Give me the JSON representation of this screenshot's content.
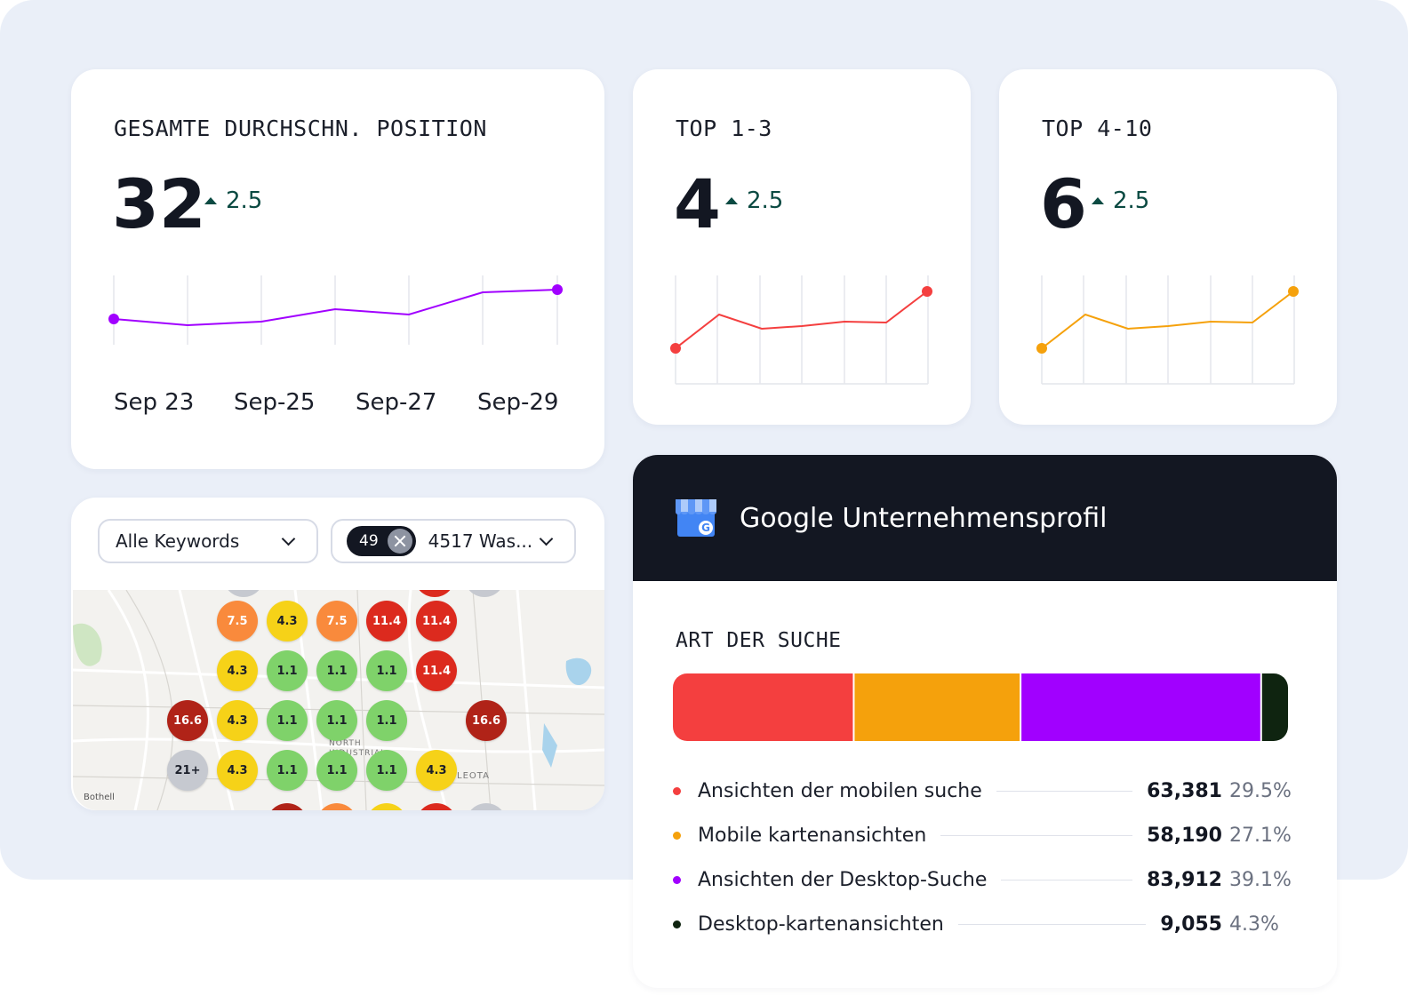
{
  "avg_position": {
    "title": "GESAMTE DURCHSCHN. POSITION",
    "value": "32",
    "delta": "2.5",
    "x_labels": [
      "Sep 23",
      "Sep-25",
      "Sep-27",
      "Sep-29"
    ],
    "series_color": "#a100ff"
  },
  "top_1_3": {
    "title": "TOP 1-3",
    "value": "4",
    "delta": "2.5",
    "series_color": "#f43f3f"
  },
  "top_4_10": {
    "title": "TOP 4-10",
    "value": "6",
    "delta": "2.5",
    "series_color": "#f5a10c"
  },
  "map_panel": {
    "keyword_select": "Alle Keywords",
    "location_count": "49",
    "location_select": "4517 Was...",
    "map_labels": [
      "Bothell",
      "LEOTA",
      "NORTH",
      "INDUSTRIAL"
    ],
    "grid": [
      {
        "v": "7.5",
        "c": "#f98a3c"
      },
      {
        "v": "4.3",
        "c": "#f6d218"
      },
      {
        "v": "7.5",
        "c": "#f98a3c"
      },
      {
        "v": "11.4",
        "c": "#dc2a1e"
      },
      {
        "v": "11.4",
        "c": "#dc2a1e"
      },
      {
        "v": "4.3",
        "c": "#f6d218"
      },
      {
        "v": "1.1",
        "c": "#7fd26a"
      },
      {
        "v": "1.1",
        "c": "#7fd26a"
      },
      {
        "v": "1.1",
        "c": "#7fd26a"
      },
      {
        "v": "11.4",
        "c": "#dc2a1e"
      },
      {
        "v": "16.6",
        "c": "#b02318"
      },
      {
        "v": "4.3",
        "c": "#f6d218"
      },
      {
        "v": "1.1",
        "c": "#7fd26a"
      },
      {
        "v": "1.1",
        "c": "#7fd26a"
      },
      {
        "v": "1.1",
        "c": "#7fd26a"
      },
      {
        "v": "16.6",
        "c": "#b02318"
      },
      {
        "v": "21+",
        "c": "#c6c9d0"
      },
      {
        "v": "4.3",
        "c": "#f6d218"
      },
      {
        "v": "1.1",
        "c": "#7fd26a"
      },
      {
        "v": "1.1",
        "c": "#7fd26a"
      },
      {
        "v": "1.1",
        "c": "#7fd26a"
      },
      {
        "v": "4.3",
        "c": "#f6d218"
      }
    ]
  },
  "gbp": {
    "header_title": "Google Unternehmensprofil",
    "section_title": "ART DER SUCHE",
    "chart_data": {
      "type": "bar",
      "orientation": "stacked-horizontal",
      "categories": [
        "Ansichten der mobilen suche",
        "Mobile kartenansichten",
        "Ansichten der Desktop-Suche",
        "Desktop-kartenansichten"
      ],
      "values": [
        63381,
        58190,
        83912,
        9055
      ],
      "display_values": [
        "63,381",
        "58,190",
        "83,912",
        "9,055"
      ],
      "percents": [
        "29.5%",
        "27.1%",
        "39.1%",
        "4.3%"
      ],
      "colors": [
        "#f43f3f",
        "#f5a10c",
        "#a100ff",
        "#0f2410"
      ]
    }
  }
}
